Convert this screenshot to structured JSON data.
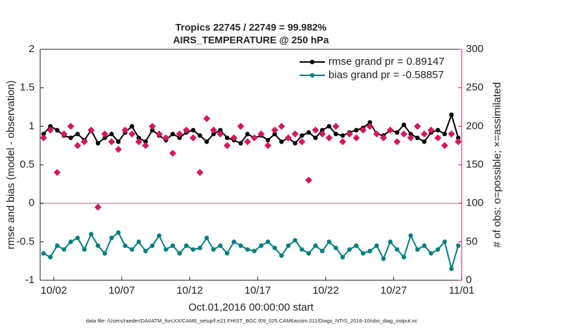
{
  "chart_data": {
    "type": "line",
    "title": "Tropics 22745 / 22749 = 99.982%",
    "subtitle": "AIRS_TEMPERATURE @ 250 hPa",
    "xlabel": "Oct.01,2016 00:00:00 start",
    "ylabel": "rmse and bias (model - observation)",
    "y2label": "# of obs: o=possible; ×=assimilated",
    "footnote": "data file: /Users/raeder/DAI/ATM_forcXX/CAM6_setup/f.e21.FHIST_BGC.f09_025.CAM6assim.011/Diags_NTrS_2016-10/obs_diag_output.nc",
    "xlim": [
      1,
      32
    ],
    "xticks": [
      {
        "value": 2,
        "label": "10/02"
      },
      {
        "value": 7,
        "label": "10/07"
      },
      {
        "value": 12,
        "label": "10/12"
      },
      {
        "value": 17,
        "label": "10/17"
      },
      {
        "value": 22,
        "label": "10/22"
      },
      {
        "value": 27,
        "label": "10/27"
      },
      {
        "value": 32,
        "label": "11/01"
      }
    ],
    "ylim": [
      -1,
      2
    ],
    "yticks": [
      -1,
      -0.5,
      0,
      0.5,
      1,
      1.5,
      2
    ],
    "y2lim": [
      0,
      300
    ],
    "y2ticks": [
      0,
      50,
      100,
      150,
      200,
      250,
      300
    ],
    "y2color": "#d6175f",
    "hline": 0,
    "legend": "upper right",
    "x": [
      1.25,
      1.75,
      2.25,
      2.75,
      3.25,
      3.75,
      4.25,
      4.75,
      5.25,
      5.75,
      6.25,
      6.75,
      7.25,
      7.75,
      8.25,
      8.75,
      9.25,
      9.75,
      10.25,
      10.75,
      11.25,
      11.75,
      12.25,
      12.75,
      13.25,
      13.75,
      14.25,
      14.75,
      15.25,
      15.75,
      16.25,
      16.75,
      17.25,
      17.75,
      18.25,
      18.75,
      19.25,
      19.75,
      20.25,
      20.75,
      21.25,
      21.75,
      22.25,
      22.75,
      23.25,
      23.75,
      24.25,
      24.75,
      25.25,
      25.75,
      26.25,
      26.75,
      27.25,
      27.75,
      28.25,
      28.75,
      29.25,
      29.75,
      30.25,
      30.75,
      31.25,
      31.75
    ],
    "series": [
      {
        "name": "rmse grand pr = 0.89147",
        "color": "#000000",
        "marker": "circle",
        "values": [
          0.9,
          1.0,
          0.95,
          0.88,
          0.85,
          0.9,
          0.82,
          0.95,
          0.78,
          0.85,
          0.9,
          0.8,
          0.92,
          1.0,
          0.85,
          0.8,
          0.95,
          0.88,
          0.82,
          0.9,
          0.85,
          0.92,
          0.95,
          0.88,
          0.8,
          0.9,
          0.95,
          0.85,
          0.82,
          0.78,
          0.9,
          0.85,
          0.88,
          0.82,
          0.9,
          0.8,
          0.85,
          0.78,
          0.88,
          0.92,
          0.85,
          0.95,
          1.0,
          0.9,
          0.88,
          0.92,
          0.95,
          0.98,
          1.05,
          0.9,
          0.88,
          0.95,
          0.92,
          1.02,
          0.9,
          0.85,
          0.8,
          0.92,
          0.95,
          0.9,
          1.15,
          0.85
        ]
      },
      {
        "name": "bias grand pr = -0.58857",
        "color": "#008080",
        "marker": "circle",
        "values": [
          -0.65,
          -0.7,
          -0.55,
          -0.6,
          -0.5,
          -0.45,
          -0.6,
          -0.4,
          -0.55,
          -0.65,
          -0.45,
          -0.38,
          -0.55,
          -0.6,
          -0.5,
          -0.62,
          -0.55,
          -0.42,
          -0.6,
          -0.55,
          -0.65,
          -0.55,
          -0.6,
          -0.58,
          -0.45,
          -0.6,
          -0.55,
          -0.65,
          -0.5,
          -0.55,
          -0.6,
          -0.62,
          -0.55,
          -0.5,
          -0.58,
          -0.68,
          -0.55,
          -0.48,
          -0.6,
          -0.65,
          -0.55,
          -0.62,
          -0.5,
          -0.58,
          -0.7,
          -0.6,
          -0.55,
          -0.65,
          -0.62,
          -0.55,
          -0.72,
          -0.5,
          -0.6,
          -0.7,
          -0.42,
          -0.6,
          -0.55,
          -0.65,
          -0.6,
          -0.5,
          -0.85,
          -0.55
        ]
      },
      {
        "color": "#d6175f",
        "marker": "diamond",
        "axis": "y2",
        "values": [
          185,
          195,
          140,
          190,
          200,
          175,
          180,
          195,
          95,
          190,
          180,
          170,
          195,
          190,
          180,
          175,
          200,
          190,
          185,
          165,
          190,
          195,
          185,
          140,
          210,
          195,
          190,
          175,
          185,
          200,
          180,
          185,
          190,
          175,
          195,
          200,
          185,
          190,
          180,
          130,
          195,
          190,
          185,
          200,
          180,
          190,
          185,
          195,
          200,
          190,
          185,
          195,
          180,
          190,
          185,
          200,
          190,
          195,
          185,
          175,
          190,
          180
        ]
      }
    ]
  }
}
